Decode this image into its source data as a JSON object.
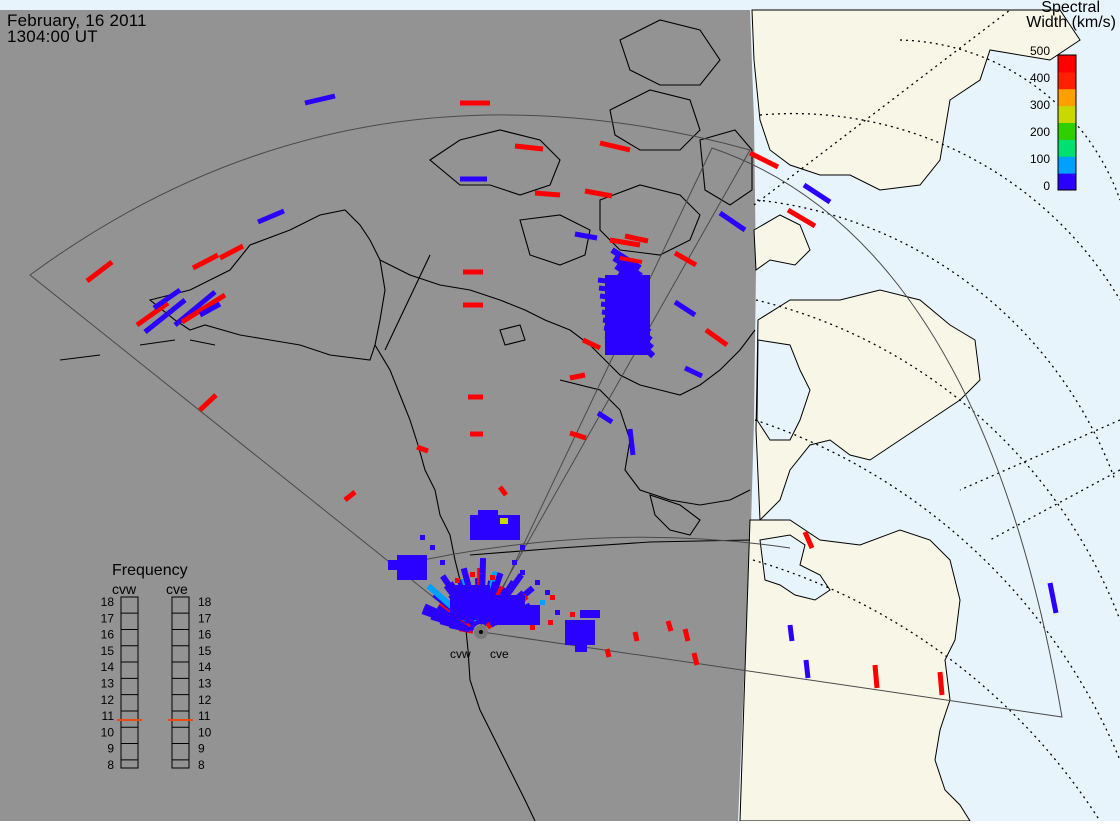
{
  "header": {
    "date": "February, 16 2011",
    "time": "1304:00 UT"
  },
  "colorbar": {
    "title_line1": "Spectral",
    "title_line2": "Width (km/s)",
    "ticks": [
      "500",
      "400",
      "300",
      "200",
      "100",
      "0"
    ],
    "scale_min": 0,
    "scale_max": 500,
    "colors": [
      "#2a00ff",
      "#00a0ff",
      "#00e070",
      "#30d000",
      "#c8d800",
      "#ffa000",
      "#ff2000",
      "#ff0000"
    ]
  },
  "frequency_panel": {
    "title": "Frequency",
    "radars": [
      {
        "label": "cvw",
        "frequency_mhz": 10.7
      },
      {
        "label": "cve",
        "frequency_mhz": 10.7
      }
    ],
    "scale": [
      "18",
      "17",
      "16",
      "15",
      "14",
      "13",
      "12",
      "11",
      "10",
      "9",
      "8"
    ],
    "marker_color": "#e84a10"
  },
  "sites": [
    {
      "label": "cvw"
    },
    {
      "label": "cve"
    }
  ],
  "colors": {
    "night_side": "#939393",
    "day_land": "#f8f6e6",
    "day_ocean": "#e8f4fc",
    "echo_low_width": "#2a00ff",
    "echo_high_width": "#ff0000"
  }
}
